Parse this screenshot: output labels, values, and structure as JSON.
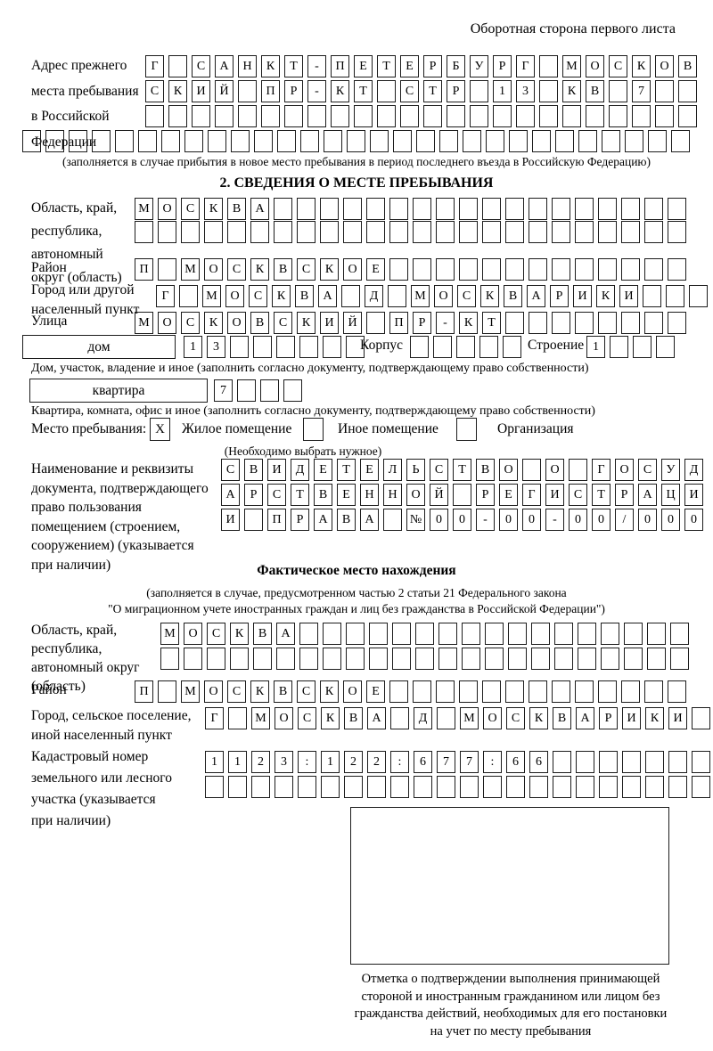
{
  "header": "Оборотная сторона первого листа",
  "prev_address": {
    "label_lines": [
      "Адрес прежнего",
      "места пребывания",
      "в Российской",
      "Федерации"
    ],
    "row1": "Г САНКТ-ПЕТЕРБУРГ МОСКОВ",
    "row2": "СКИЙ ПР-КТ СТР 13 КВ 7  ",
    "row3": "                        ",
    "row4": "                             ",
    "note": "(заполняется в случае прибытия в новое место пребывания в период последнего въезда в Российскую Федерацию)"
  },
  "section2": {
    "title": "2. СВЕДЕНИЯ О МЕСТЕ ПРЕБЫВАНИЯ",
    "region": {
      "label_lines": [
        "Область, край,",
        "республика,",
        "автономный",
        "округ (область)"
      ],
      "row1": "МОСКВА                  ",
      "row2": "                        "
    },
    "district": {
      "label": "Район",
      "row": "П МОСКВСКОЕ             "
    },
    "city": {
      "label_lines": [
        "Город или другой",
        "населенный пункт"
      ],
      "row": "Г МОСКВА Д МОСКВАРИКИ   "
    },
    "street": {
      "label": "Улица",
      "row": "МОСКОВСКИЙ ПР-КТ        "
    },
    "house": {
      "box_label": "дом",
      "cells": "13      ",
      "korpus_label": "Корпус",
      "korpus_cells": "     ",
      "stroenie_label": "Строение",
      "stroenie_cells": "1   ",
      "note": "Дом, участок, владение и иное (заполнить согласно документу, подтверждающему право собственности)"
    },
    "apartment": {
      "box_label": "квартира",
      "cells": "7   ",
      "note": "Квартира, комната, офис и иное (заполнить согласно документу, подтверждающему право собственности)"
    },
    "stay": {
      "label": "Место пребывания:",
      "options": [
        {
          "mark": "X",
          "label": "Жилое помещение"
        },
        {
          "mark": "",
          "label": "Иное помещение"
        },
        {
          "mark": "",
          "label": "Организация"
        }
      ],
      "note": "(Необходимо выбрать нужное)"
    },
    "document": {
      "label_lines": [
        "Наименование и реквизиты",
        "документа, подтверждающего",
        "право пользования",
        "помещением (строением,",
        "сооружением) (указывается",
        "при наличии)"
      ],
      "row1": "СВИДЕТЕЛЬСТВО О ГОСУД",
      "row2": "АРСТВЕННОЙ РЕГИСТРАЦИ",
      "row3": "И ПРАВА №00-00-00/000"
    }
  },
  "actual_location": {
    "title": "Фактическое место нахождения",
    "note_lines": [
      "(заполняется в случае, предусмотренном частью 2 статьи 21 Федерального закона",
      "\"О миграционном учете иностранных граждан и лиц без гражданства в Российской Федерации\")"
    ],
    "region": {
      "label_lines": [
        "Область, край,",
        "республика,",
        "автономный округ",
        "(область)"
      ],
      "row1": "МОСКВА                 ",
      "row2": "                       "
    },
    "district": {
      "label": "Район",
      "row": "П МОСКВСКОЕ             "
    },
    "city": {
      "label_lines": [
        "Город, сельское поселение,",
        "иной населенный пункт"
      ],
      "row": "Г МОСКВА Д МОСКВАРИКИ "
    },
    "cadastre": {
      "label_lines": [
        "Кадастровый номер",
        "земельного или лесного",
        "участка (указывается",
        "при наличии)"
      ],
      "row1": "1123:122:677:66       ",
      "row2": "                      "
    }
  },
  "stamp": {
    "caption_lines": [
      "Отметка о подтверждении выполнения принимающей",
      "стороной и иностранным гражданином или лицом без",
      "гражданства действий, необходимых для его постановки",
      "на учет по месту пребывания"
    ]
  }
}
